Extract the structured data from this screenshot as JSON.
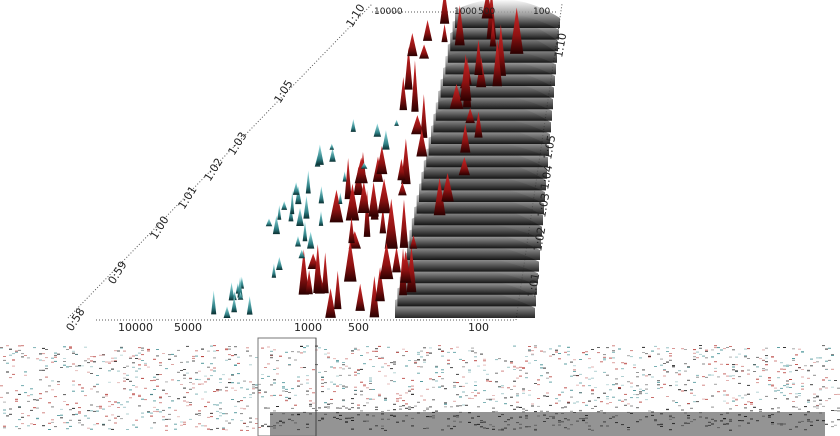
{
  "waterfall": {
    "frequency_ticks_front": [
      "10000",
      "5000",
      "1000",
      "500",
      "100"
    ],
    "frequency_ticks_back": [
      "10000",
      "1000",
      "500",
      "100"
    ],
    "time_ticks_left": [
      "0:58",
      "0:59",
      "1:00",
      "1:01",
      "1:02",
      "1:03",
      "1:05",
      "1:10"
    ],
    "time_ticks_right": [
      "1:01",
      "1:02",
      "1:03",
      "1:04",
      "1:05",
      "1:10"
    ],
    "colors": {
      "background": "#ffffff",
      "high_energy": "#b11d1d",
      "low_energy": "#3fb3b7",
      "surface_shadow": "#000000",
      "axis": "#555555"
    }
  },
  "overview": {
    "colors": {
      "background": "#ffffff",
      "cursor": "#444444",
      "trace_red": "#b3322d",
      "trace_teal": "#3a8a8f",
      "trace_black": "#111111"
    }
  }
}
